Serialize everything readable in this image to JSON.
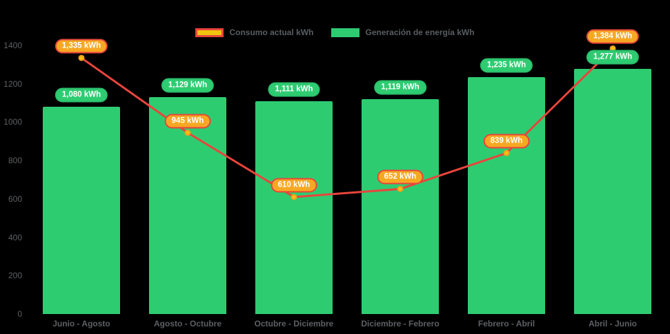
{
  "chart_data": {
    "type": "bar",
    "title": "",
    "xlabel": "",
    "ylabel": "",
    "categories": [
      "Junio - Agosto",
      "Agosto - Octubre",
      "Octubre - Diciembre",
      "Diciembre - Febrero",
      "Febrero - Abril",
      "Abril - Junio"
    ],
    "series": [
      {
        "name": "Consumo actual kWh",
        "type": "line",
        "values": [
          1335,
          945,
          610,
          652,
          839,
          1384
        ],
        "value_labels": [
          "1,335 kWh",
          "945 kWh",
          "610 kWh",
          "652 kWh",
          "839 kWh",
          "1,384 kWh"
        ],
        "line_color": "#e8453c",
        "marker_fill": "#f9c10e",
        "marker_border": "#ef9f20",
        "label_bg": "#f6a823",
        "label_border": "#e8453c"
      },
      {
        "name": "Generación de energía kWh",
        "type": "bar",
        "values": [
          1080,
          1129,
          1111,
          1119,
          1235,
          1277
        ],
        "value_labels": [
          "1,080 kWh",
          "1,129 kWh",
          "1,111 kWh",
          "1,119 kWh",
          "1,235 kWh",
          "1,277 kWh"
        ],
        "bar_color": "#2ecc71",
        "label_bg": "#2ecc71",
        "label_border": "#2bc06d"
      }
    ],
    "yticks": [
      "0",
      "200",
      "400",
      "600",
      "800",
      "1000",
      "1200",
      "1400"
    ],
    "ylim": [
      0,
      1400
    ],
    "grid": false,
    "legend_position": "top",
    "background": "#000000",
    "axis_text_color": "#5d6064",
    "label_text_color": "#ffffff"
  }
}
